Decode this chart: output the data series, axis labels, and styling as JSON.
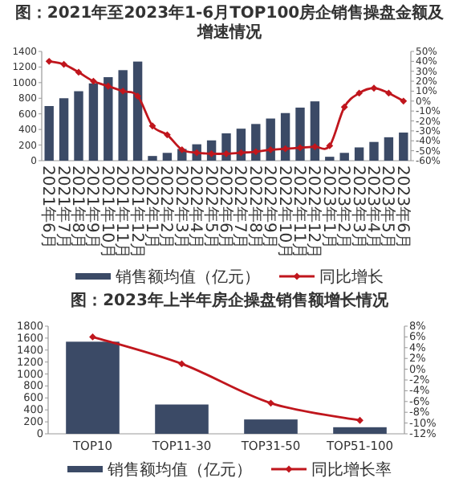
{
  "chart_data": [
    {
      "type": "bar",
      "title": "图：2021年至2023年1-6月TOP100房企销售操盘金额及增速情况",
      "categories": [
        "2021年6月",
        "2021年7月",
        "2021年8月",
        "2021年9月",
        "2021年10月",
        "2021年11月",
        "2021年12月",
        "2022年1月",
        "2022年2月",
        "2022年3月",
        "2022年4月",
        "2022年5月",
        "2022年6月",
        "2022年7月",
        "2022年8月",
        "2022年9月",
        "2022年10月",
        "2022年11月",
        "2022年12月",
        "2023年1月",
        "2023年2月",
        "2023年3月",
        "2023年4月",
        "2023年5月",
        "2023年6月"
      ],
      "series": [
        {
          "name": "销售额均值（亿元）",
          "color": "#3b4a66",
          "values": [
            700,
            800,
            890,
            990,
            1070,
            1160,
            1270,
            60,
            100,
            150,
            210,
            260,
            350,
            410,
            470,
            540,
            610,
            680,
            760,
            50,
            100,
            170,
            240,
            300,
            360
          ]
        },
        {
          "name": "同比增长",
          "type": "line",
          "axis": "y2",
          "color": "#c0161d",
          "values": [
            40,
            37,
            29,
            20,
            15,
            10,
            5,
            -25,
            -34,
            -49,
            -52,
            -53,
            -53,
            -52,
            -51,
            -49,
            -48,
            -47,
            -46,
            -45,
            -6,
            8,
            13,
            8,
            0
          ]
        }
      ],
      "ylim": [
        0,
        1400
      ],
      "yticks": [
        0,
        200,
        400,
        600,
        800,
        1000,
        1200,
        1400
      ],
      "y2lim": [
        -60,
        50
      ],
      "y2ticks": [
        {
          "value": -60,
          "label": "-60%"
        },
        {
          "value": -50,
          "label": "-50%"
        },
        {
          "value": -40,
          "label": "-40%"
        },
        {
          "value": -30,
          "label": "-30%"
        },
        {
          "value": -20,
          "label": "-20%"
        },
        {
          "value": -10,
          "label": "-10%"
        },
        {
          "value": 0,
          "label": "0%"
        },
        {
          "value": 10,
          "label": "10%"
        },
        {
          "value": 20,
          "label": "20%"
        },
        {
          "value": 30,
          "label": "30%"
        },
        {
          "value": 40,
          "label": "40%"
        },
        {
          "value": 50,
          "label": "50%"
        }
      ],
      "marker": "diamond",
      "legend": "bottom"
    },
    {
      "type": "bar",
      "title": "图：2023年上半年房企操盘销售额增长情况",
      "categories": [
        "TOP10",
        "TOP11-30",
        "TOP31-50",
        "TOP51-100"
      ],
      "series": [
        {
          "name": "销售额均值（亿元）",
          "color": "#3b4a66",
          "values": [
            1540,
            490,
            240,
            110
          ]
        },
        {
          "name": "同比增长率",
          "type": "line",
          "axis": "y2",
          "color": "#c0161d",
          "values": [
            6,
            1,
            -6.3,
            -9.5
          ]
        }
      ],
      "ylim": [
        0,
        1800
      ],
      "yticks": [
        0,
        200,
        400,
        600,
        800,
        1000,
        1200,
        1400,
        1600,
        1800
      ],
      "y2lim": [
        -12,
        8
      ],
      "y2ticks": [
        {
          "value": -12,
          "label": "-12%"
        },
        {
          "value": -10,
          "label": "-10%"
        },
        {
          "value": -8,
          "label": "-8%"
        },
        {
          "value": -6,
          "label": "-6%"
        },
        {
          "value": -4,
          "label": "-4%"
        },
        {
          "value": -2,
          "label": "-2%"
        },
        {
          "value": 0,
          "label": "0%"
        },
        {
          "value": 2,
          "label": "2%"
        },
        {
          "value": 4,
          "label": "4%"
        },
        {
          "value": 6,
          "label": "6%"
        },
        {
          "value": 8,
          "label": "8%"
        }
      ],
      "marker": "diamond",
      "legend": "bottom"
    }
  ]
}
